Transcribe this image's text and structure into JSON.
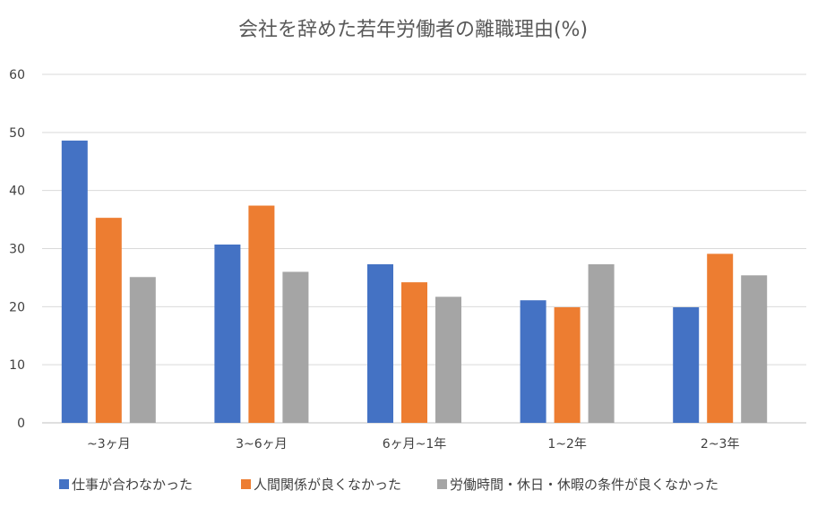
{
  "chart_data": {
    "type": "bar",
    "title": "会社を辞めた若年労働者の離職理由(%)",
    "xlabel": "",
    "ylabel": "",
    "ylim": [
      0,
      60
    ],
    "yticks": [
      0,
      10,
      20,
      30,
      40,
      50,
      60
    ],
    "grid": true,
    "legend_position": "bottom",
    "categories": [
      "~3ヶ月",
      "3~6ヶ月",
      "6ヶ月~1年",
      "1~2年",
      "2~3年"
    ],
    "series": [
      {
        "name": "仕事が合わなかった",
        "color": "#4472C4",
        "values": [
          48.6,
          30.7,
          27.3,
          21.1,
          19.9
        ]
      },
      {
        "name": "人間関係が良くなかった",
        "color": "#ED7D31",
        "values": [
          35.3,
          37.4,
          24.2,
          19.9,
          29.1
        ]
      },
      {
        "name": "労働時間・休日・休暇の条件が良くなかった",
        "color": "#A5A5A5",
        "values": [
          25.1,
          26.0,
          21.7,
          27.3,
          25.4
        ]
      }
    ]
  }
}
